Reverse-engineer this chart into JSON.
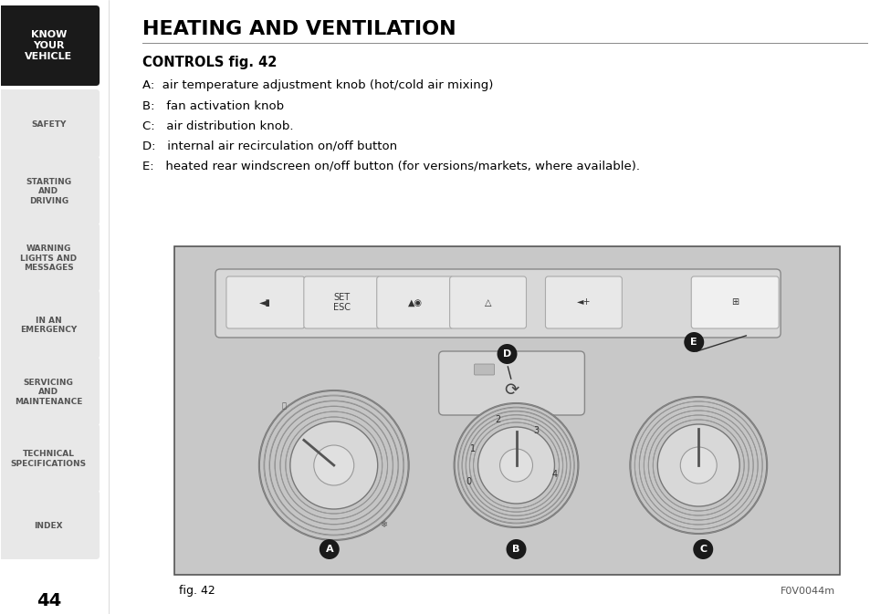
{
  "title": "HEATING AND VENTILATION",
  "subtitle": "CONTROLS fig. 42",
  "items": [
    "A:  air temperature adjustment knob (hot/cold air mixing)",
    "B:   fan activation knob",
    "C:   air distribution knob.",
    "D:   internal air recirculation on/off button",
    "E:   heated rear windscreen on/off button (for versions/markets, where available)."
  ],
  "fig_label": "fig. 42",
  "fig_code": "F0V0044m",
  "page_number": "44",
  "sidebar_items": [
    "KNOW\nYOUR\nVEHICLE",
    "SAFETY",
    "STARTING\nAND\nDRIVING",
    "WARNING\nLIGHTS AND\nMESSAGES",
    "IN AN\nEMERGENCY",
    "SERVICING\nAND\nMAINTENANCE",
    "TECHNICAL\nSPECIFICATIONS",
    "INDEX"
  ],
  "sidebar_active": 0,
  "bg_color": "#ffffff",
  "sidebar_bg": "#e8e8e8",
  "sidebar_active_bg": "#1a1a1a",
  "sidebar_text_color": "#555555",
  "sidebar_active_text": "#ffffff",
  "title_color": "#000000",
  "body_color": "#000000",
  "image_bg": "#d0d0d0"
}
